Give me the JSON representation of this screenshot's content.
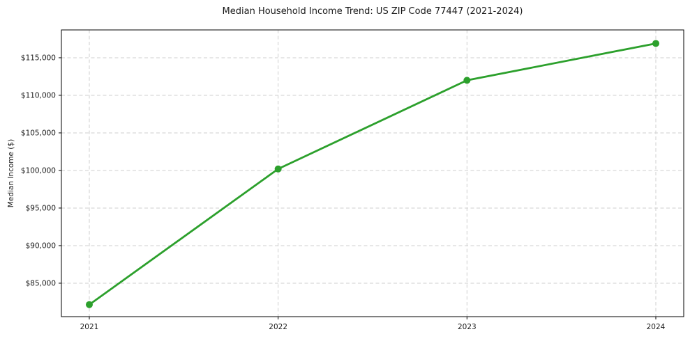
{
  "chart_data": {
    "type": "line",
    "title": "Median Household Income Trend: US ZIP Code 77447 (2021-2024)",
    "xlabel": "",
    "ylabel": "Median Income ($)",
    "x": [
      2021,
      2022,
      2023,
      2024
    ],
    "xtick_labels": [
      "2021",
      "2022",
      "2023",
      "2024"
    ],
    "series": [
      {
        "name": "Median Household Income",
        "values": [
          82150,
          100200,
          112000,
          116900
        ]
      }
    ],
    "ylim": [
      80550,
      118700
    ],
    "yticks": [
      85000,
      90000,
      95000,
      100000,
      105000,
      110000,
      115000
    ],
    "ytick_labels": [
      "$85,000",
      "$90,000",
      "$95,000",
      "$100,000",
      "$105,000",
      "$110,000",
      "$115,000"
    ],
    "grid": true,
    "grid_style": "dashed",
    "legend": "none",
    "line_color": "#2ca02c",
    "marker": "circle",
    "grid_color": "#cfcfcf",
    "spine_color": "#000000",
    "text_color": "#1a1a1a"
  }
}
